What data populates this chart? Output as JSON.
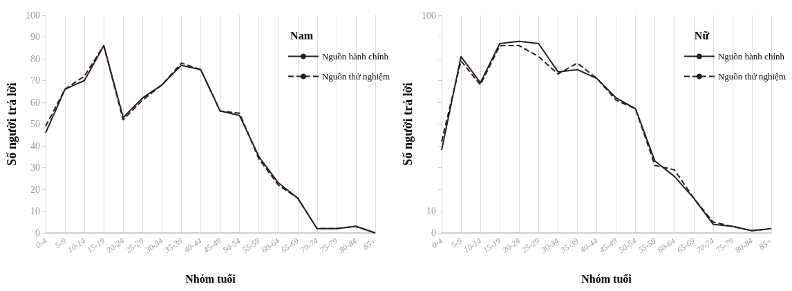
{
  "chart_data": [
    {
      "type": "line",
      "legend_title": "Nam",
      "xlabel": "Nhóm tuổi",
      "ylabel": "Số người trả lời",
      "categories": [
        "0-4",
        "5-9",
        "10-14",
        "15-19",
        "20-24",
        "25-29",
        "30-34",
        "35-39",
        "40-44",
        "45-49",
        "50-54",
        "55-59",
        "60-64",
        "65-69",
        "70-74",
        "75-79",
        "80-84",
        "85+"
      ],
      "series": [
        {
          "name": "Nguồn hành chính",
          "color": "#2b1d1d",
          "line_style": "solid",
          "values": [
            46,
            66,
            70,
            86,
            53,
            62,
            68,
            77,
            75,
            56,
            54,
            35,
            23,
            16,
            2,
            2,
            3,
            0
          ]
        },
        {
          "name": "Nguồn thử nghiệm",
          "color": "#2b1d1d",
          "line_style": "dashed",
          "values": [
            49,
            66,
            72,
            86,
            52,
            61,
            68,
            78,
            75,
            56,
            55,
            34,
            22,
            16,
            2,
            2,
            3,
            0
          ]
        }
      ],
      "ylim": [
        0,
        100
      ],
      "yticks": [
        0,
        10,
        20,
        30,
        40,
        50,
        60,
        70,
        80,
        90,
        100
      ],
      "grid": "x",
      "legend": "top right",
      "marker": "none"
    },
    {
      "type": "line",
      "legend_title": "Nữ",
      "xlabel": "Nhóm tuổi",
      "ylabel": "Số người trả lời",
      "categories": [
        "0-4",
        "5-9",
        "10-14",
        "15-19",
        "20-24",
        "25-29",
        "30-34",
        "35-39",
        "40-44",
        "45-49",
        "50-54",
        "55-59",
        "60-64",
        "65-69",
        "70-74",
        "75-79",
        "80-84",
        "85+"
      ],
      "series": [
        {
          "name": "Nguồn hành chính",
          "color": "#2b1d1d",
          "line_style": "solid",
          "values": [
            38,
            81,
            69,
            87,
            88,
            87,
            74,
            75,
            71,
            62,
            57,
            33,
            26,
            16,
            4,
            3,
            1,
            2
          ]
        },
        {
          "name": "Nguồn thử nghiệm",
          "color": "#2b1d1d",
          "line_style": "dashed",
          "values": [
            42,
            79,
            68,
            86,
            86,
            81,
            73,
            78,
            71,
            61,
            57,
            31,
            29,
            16,
            5,
            3,
            1,
            2
          ]
        }
      ],
      "ylim": [
        0,
        100
      ],
      "yticks": [
        0,
        10,
        {
          "value": 20,
          "label": null
        },
        {
          "value": 30,
          "label": null
        },
        {
          "value": 40,
          "label": null
        },
        {
          "value": 50,
          "label": null
        },
        {
          "value": 60,
          "label": null
        },
        {
          "value": 70,
          "label": null
        },
        {
          "value": 80,
          "label": null
        },
        {
          "value": 90,
          "label": null
        },
        100
      ],
      "grid": "x",
      "legend": "top right",
      "marker": "none"
    }
  ]
}
